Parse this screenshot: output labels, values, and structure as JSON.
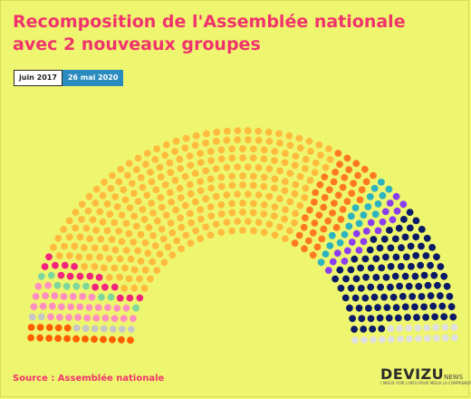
{
  "title": "Recomposition de l'Assemblée nationale avec 2 nouveaux groupes",
  "tabs": [
    {
      "label": "juin 2017",
      "active": false
    },
    {
      "label": "26 mai 2020",
      "active": true
    }
  ],
  "source": "Source : Assemblée nationale",
  "logo": {
    "name": "DEVIZU",
    "suffix": "NEWS",
    "tagline": "[ MIEUX VOIR L'INFO POUR MIEUX LA COMPRENDRE ]"
  },
  "chart_data": {
    "type": "hemicycle",
    "total_seats": 577,
    "groups_left_to_right": [
      {
        "color": "#ff5f00",
        "seats": 17
      },
      {
        "color": "#c7c7c7",
        "seats": 9
      },
      {
        "color": "#ff8fc0",
        "seats": 30
      },
      {
        "color": "#7ed69d",
        "seats": 9
      },
      {
        "color": "#f2247c",
        "seats": 16
      },
      {
        "color": "#ffbb3d",
        "seats": 288
      },
      {
        "color": "#ff7a1f",
        "seats": 46
      },
      {
        "color": "#2bb3c0",
        "seats": 19
      },
      {
        "color": "#8a3cf0",
        "seats": 19
      },
      {
        "color": "#0b1a66",
        "seats": 104
      },
      {
        "color": "#e0e0e0",
        "seats": 20
      }
    ]
  }
}
